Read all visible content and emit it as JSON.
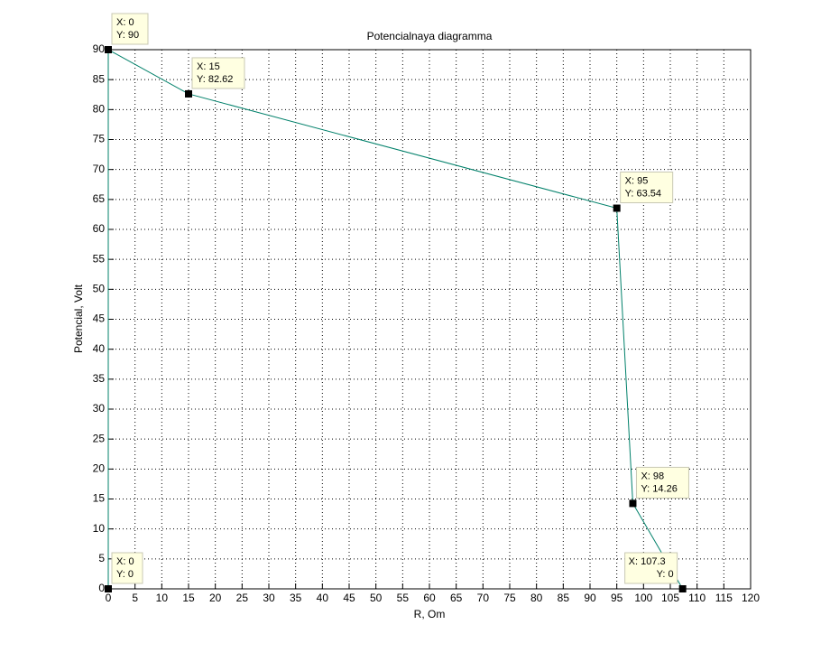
{
  "chart_data": {
    "type": "line",
    "title": "Potencialnaya diagramma",
    "x_label": "R, Om",
    "y_label": "Potencial, Volt",
    "x": [
      0,
      0,
      15,
      95,
      98,
      107.3
    ],
    "series": [
      {
        "color": "#00806a",
        "values": [
          0,
          90,
          82.62,
          63.54,
          14.26,
          0
        ],
        "x_labels": [
          "X: 0",
          "X: 0",
          "X: 15",
          "X: 95",
          "X: 98",
          "X: 107.3"
        ],
        "value_labels": [
          "Y: 0",
          "Y: 90",
          "Y: 82.62",
          "Y: 63.54",
          "Y: 14.26",
          "Y: 0"
        ]
      }
    ],
    "xlim": [
      0,
      120
    ],
    "ylim": [
      0,
      90
    ],
    "xticks": [
      0,
      5,
      10,
      15,
      20,
      25,
      30,
      35,
      40,
      45,
      50,
      55,
      60,
      65,
      70,
      75,
      80,
      85,
      90,
      95,
      100,
      105,
      110,
      115,
      120
    ],
    "yticks": [
      0,
      5,
      10,
      15,
      20,
      25,
      30,
      35,
      40,
      45,
      50,
      55,
      60,
      65,
      70,
      75,
      80,
      85,
      90
    ],
    "grid": true
  }
}
